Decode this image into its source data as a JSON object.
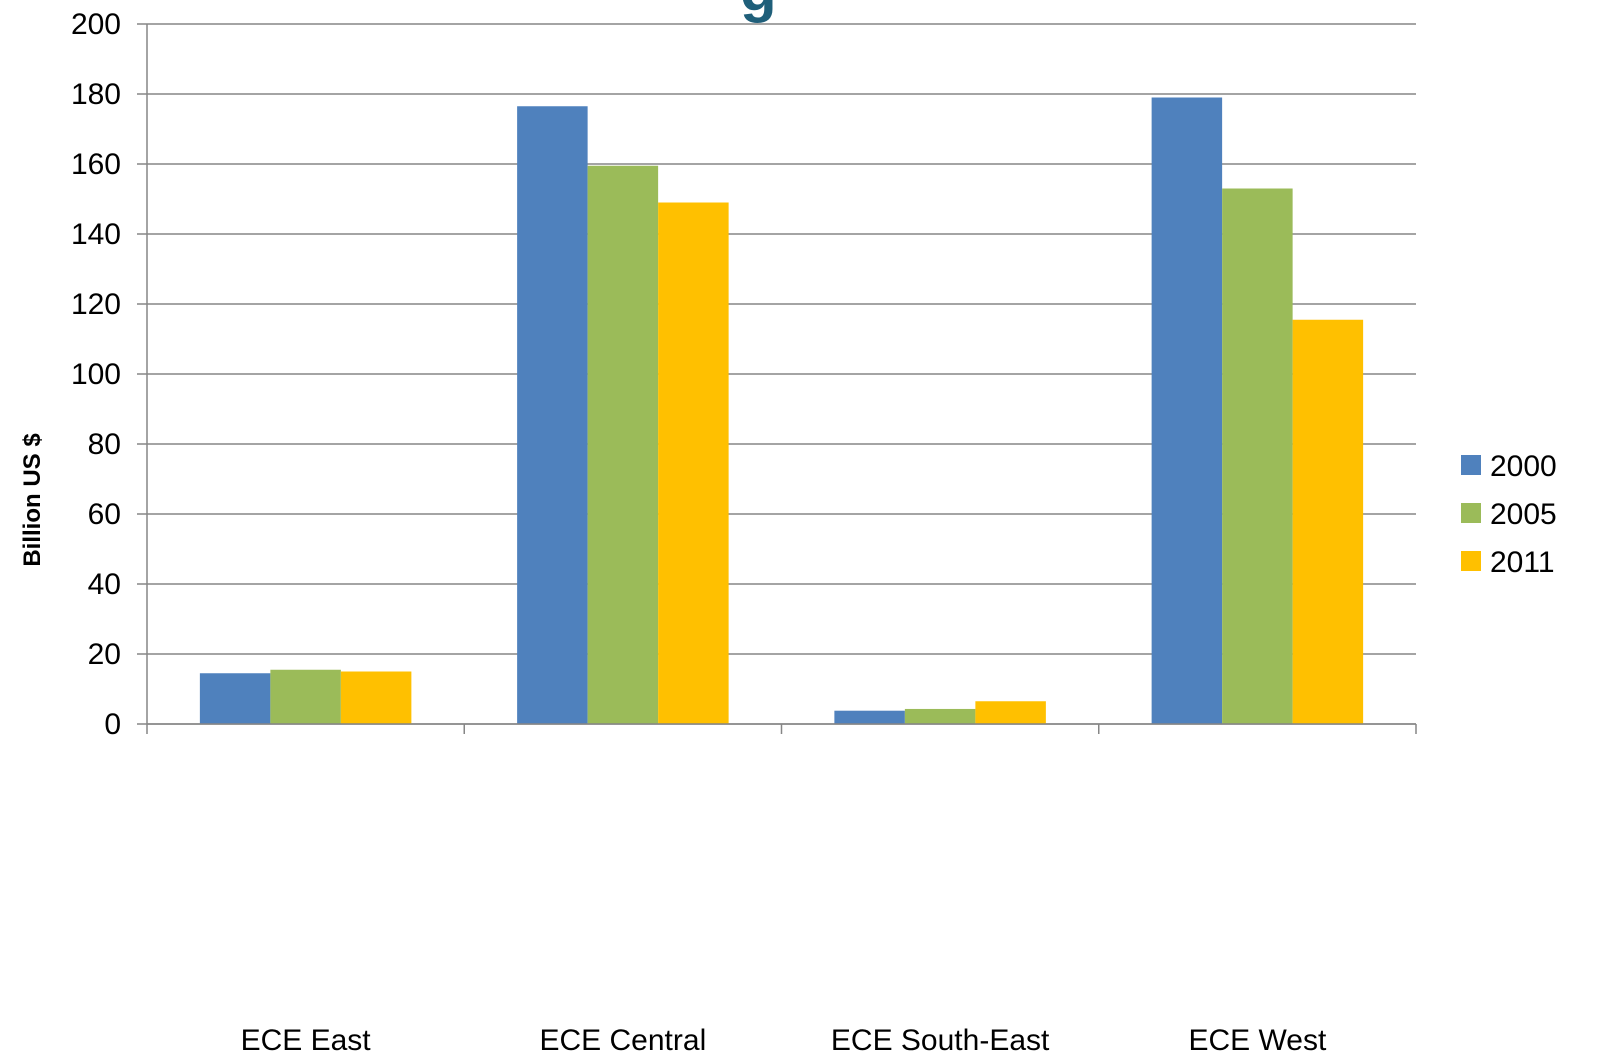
{
  "chart_data": {
    "type": "bar",
    "title_fragment": "g",
    "ylabel": "Billion US $",
    "xlabel": "",
    "ylim": [
      0,
      200
    ],
    "yticks": [
      0,
      20,
      40,
      60,
      80,
      100,
      120,
      140,
      160,
      180,
      200
    ],
    "categories": [
      "ECE East",
      "ECE Central",
      "ECE South-East",
      "ECE West"
    ],
    "series": [
      {
        "name": "2000",
        "color": "#4f81bd",
        "values": [
          14.5,
          176.5,
          3.8,
          179
        ]
      },
      {
        "name": "2005",
        "color": "#9bbb59",
        "values": [
          15.5,
          159.5,
          4.3,
          153
        ]
      },
      {
        "name": "2011",
        "color": "#ffc000",
        "values": [
          15.0,
          149,
          6.5,
          115.5
        ]
      }
    ],
    "grid": true,
    "legend_position": "right"
  }
}
